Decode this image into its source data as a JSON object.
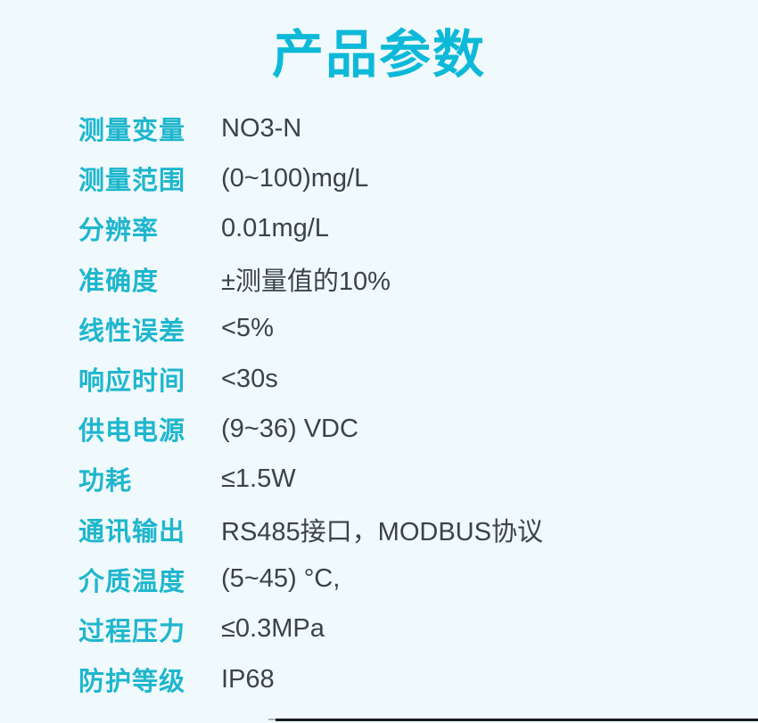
{
  "page": {
    "title": "产品参数"
  },
  "colors": {
    "background": "#f0f9fc",
    "title": "#0db9d8",
    "label": "#1eb6cd",
    "value": "#3b4249",
    "bottom_bar": "#191c1f"
  },
  "parameters": [
    {
      "label": "测量变量",
      "value": "NO3-N"
    },
    {
      "label": "测量范围",
      "value": "(0~100)mg/L"
    },
    {
      "label": "分辨率",
      "value": "0.01mg/L"
    },
    {
      "label": "准确度",
      "value": "±测量值的10%"
    },
    {
      "label": "线性误差",
      "value": "<5%"
    },
    {
      "label": "响应时间",
      "value": "<30s"
    },
    {
      "label": "供电电源",
      "value": "(9~36) VDC"
    },
    {
      "label": "功耗",
      "value": "≤1.5W"
    },
    {
      "label": "通讯输出",
      "value": "RS485接口，MODBUS协议"
    },
    {
      "label": "介质温度",
      "value": "(5~45) °C,"
    },
    {
      "label": "过程压力",
      "value": "≤0.3MPa"
    },
    {
      "label": "防护等级",
      "value": "IP68"
    }
  ]
}
